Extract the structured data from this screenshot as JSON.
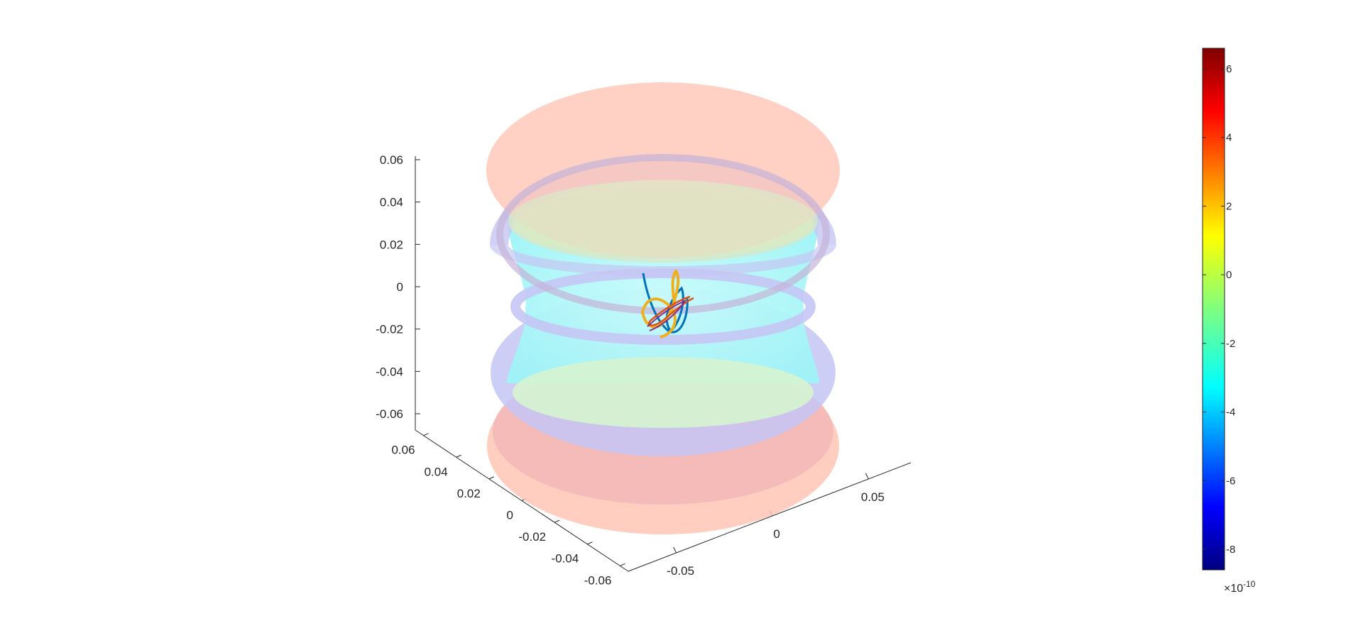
{
  "chart_data": {
    "type": "surface3d",
    "title": "",
    "axes": {
      "x": {
        "ticks": [
          -0.05,
          0,
          0.05
        ],
        "tick_labels": [
          "-0.05",
          "0",
          "0.05"
        ]
      },
      "y": {
        "ticks": [
          -0.06,
          -0.04,
          -0.02,
          0,
          0.02,
          0.04,
          0.06
        ],
        "tick_labels": [
          "-0.06",
          "-0.04",
          "-0.02",
          "0",
          "0.02",
          "0.04",
          "0.06"
        ]
      },
      "z": {
        "ticks": [
          0.06,
          0.04,
          0.02,
          0,
          -0.02,
          -0.04,
          -0.06
        ],
        "tick_labels": [
          "0.06",
          "0.04",
          "0.02",
          "0",
          "-0.02",
          "-0.04",
          "-0.06"
        ],
        "lim": [
          -0.06,
          0.06
        ]
      }
    },
    "surfaces": [
      {
        "name": "",
        "z": 0.055,
        "outer_r": 0.05,
        "inner_r": 0.045,
        "color": "#ffb9a6"
      },
      {
        "name": "",
        "z": 0.025,
        "outer_r": 0.05,
        "inner_r": 0.042,
        "color": "#b7b9ef"
      },
      {
        "name": "",
        "z": -0.025,
        "outer_r": 0.05,
        "inner_r": 0.042,
        "color": "#b7b9ef"
      },
      {
        "name": "",
        "z": -0.055,
        "outer_r": 0.05,
        "inner_r": 0.045,
        "color": "#ffb9a6"
      }
    ],
    "inner_volume_color": "#9ff7f8",
    "trajectories": [
      {
        "name": "",
        "color": "#0072bd"
      },
      {
        "name": "",
        "color": "#edb120"
      },
      {
        "name": "",
        "color": "#d95319"
      },
      {
        "name": "",
        "color": "#7e2f8e"
      }
    ],
    "colorbar": {
      "ticks": [
        6,
        4,
        2,
        0,
        -2,
        -4,
        -6,
        -8
      ],
      "tick_labels": [
        "6",
        "4",
        "2",
        "0",
        "-2",
        "-4",
        "-6",
        "-8"
      ],
      "range": [
        -8.6,
        6.6
      ],
      "exponent_label": "×10",
      "exponent_power": "-10",
      "colormap": "jet"
    },
    "grid": false,
    "legend": "none"
  }
}
